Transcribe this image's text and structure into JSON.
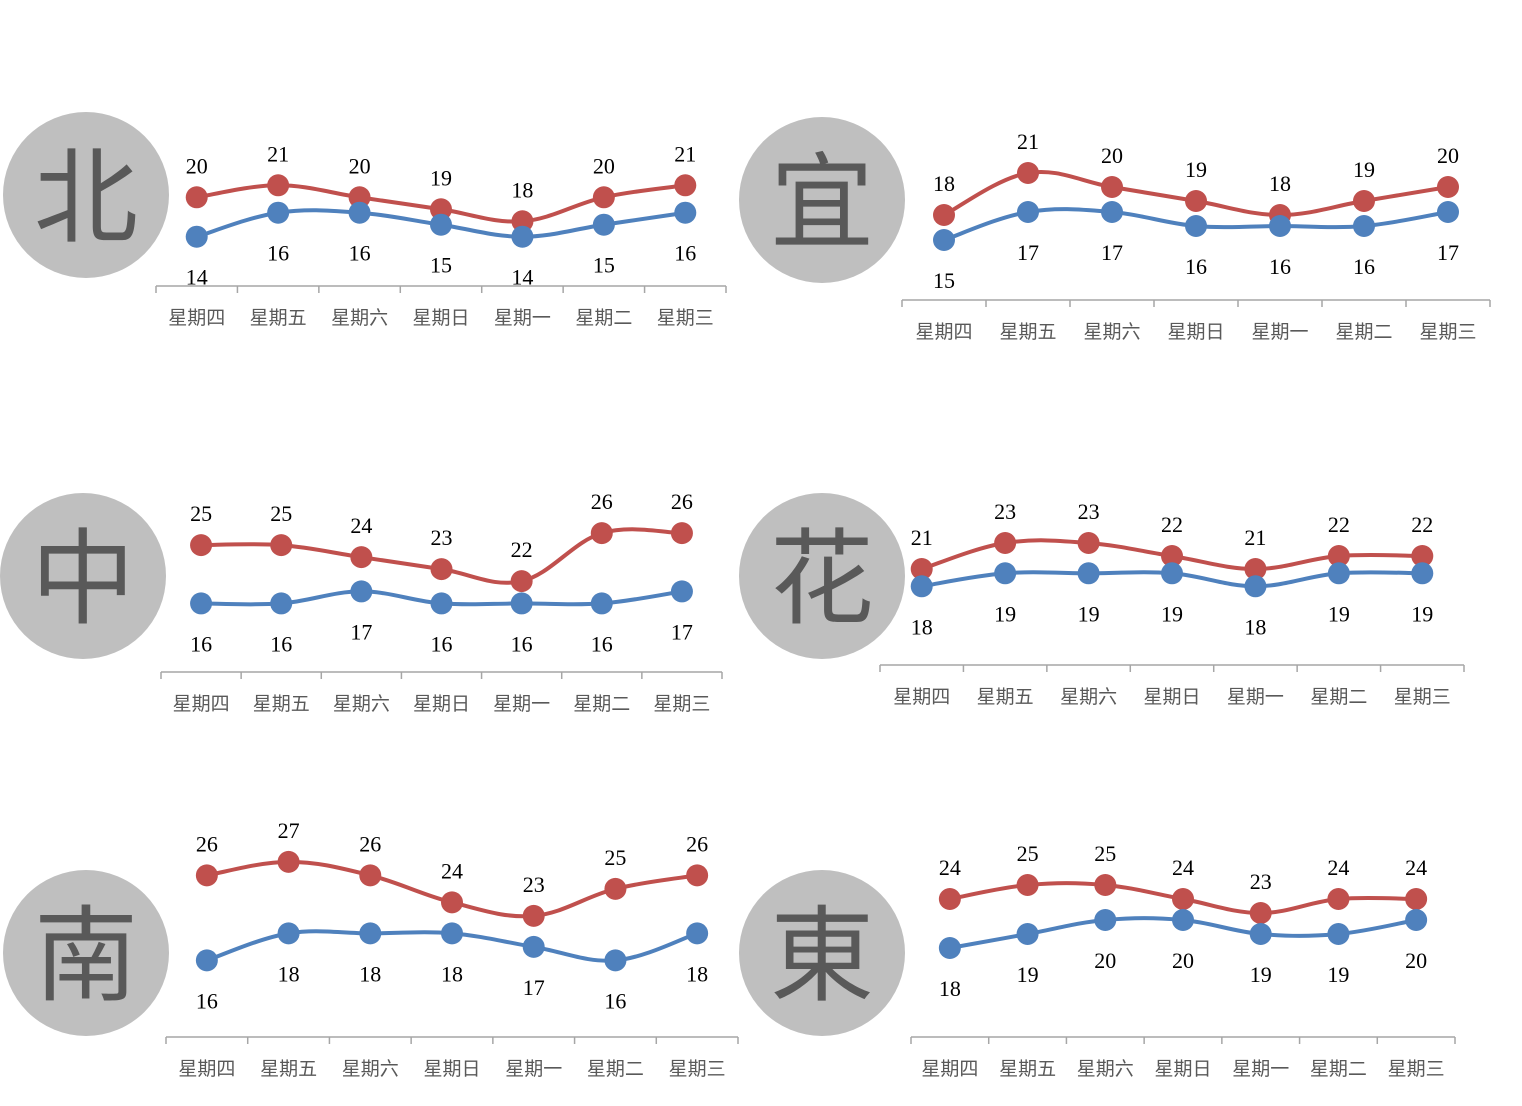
{
  "colors": {
    "high": "#c0504d",
    "low": "#4f81bd",
    "circle": "#bfbfbf",
    "axis": "#a6a6a6"
  },
  "chart_data": [
    {
      "type": "line",
      "region": "北",
      "categories": [
        "星期四",
        "星期五",
        "星期六",
        "星期日",
        "星期一",
        "星期二",
        "星期三"
      ],
      "series": [
        {
          "values": [
            20,
            21,
            20,
            19,
            18,
            20,
            21
          ]
        },
        {
          "values": [
            14,
            16,
            16,
            15,
            14,
            15,
            16
          ]
        }
      ]
    },
    {
      "type": "line",
      "region": "宜",
      "categories": [
        "星期四",
        "星期五",
        "星期六",
        "星期日",
        "星期一",
        "星期二",
        "星期三"
      ],
      "series": [
        {
          "values": [
            18,
            21,
            20,
            19,
            18,
            19,
            20
          ]
        },
        {
          "values": [
            15,
            17,
            17,
            16,
            16,
            16,
            17
          ]
        }
      ]
    },
    {
      "type": "line",
      "region": "中",
      "categories": [
        "星期四",
        "星期五",
        "星期六",
        "星期日",
        "星期一",
        "星期二",
        "星期三"
      ],
      "series": [
        {
          "values": [
            25,
            25,
            24,
            23,
            22,
            26,
            26
          ]
        },
        {
          "values": [
            16,
            16,
            17,
            16,
            16,
            16,
            17
          ]
        }
      ]
    },
    {
      "type": "line",
      "region": "花",
      "categories": [
        "星期四",
        "星期五",
        "星期六",
        "星期日",
        "星期一",
        "星期二",
        "星期三"
      ],
      "series": [
        {
          "values": [
            21,
            23,
            23,
            22,
            21,
            22,
            22
          ]
        },
        {
          "values": [
            18,
            19,
            19,
            19,
            18,
            19,
            19
          ]
        }
      ]
    },
    {
      "type": "line",
      "region": "南",
      "categories": [
        "星期四",
        "星期五",
        "星期六",
        "星期日",
        "星期一",
        "星期二",
        "星期三"
      ],
      "series": [
        {
          "values": [
            26,
            27,
            26,
            24,
            23,
            25,
            26
          ]
        },
        {
          "values": [
            16,
            18,
            18,
            18,
            17,
            16,
            18
          ]
        }
      ]
    },
    {
      "type": "line",
      "region": "東",
      "categories": [
        "星期四",
        "星期五",
        "星期六",
        "星期日",
        "星期一",
        "星期二",
        "星期三"
      ],
      "series": [
        {
          "values": [
            24,
            25,
            25,
            24,
            23,
            24,
            24
          ]
        },
        {
          "values": [
            18,
            19,
            20,
            20,
            19,
            19,
            20
          ]
        }
      ]
    }
  ]
}
